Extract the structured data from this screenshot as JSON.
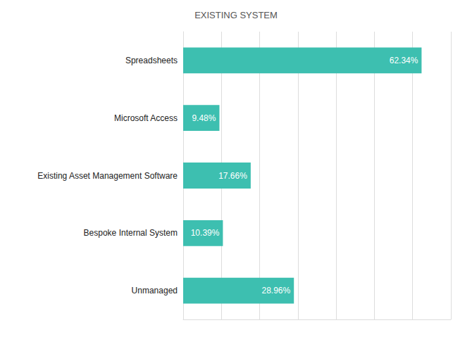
{
  "chart_data": {
    "type": "bar",
    "orientation": "horizontal",
    "title": "EXISTING SYSTEM",
    "categories": [
      "Unmanaged",
      "Bespoke Internal System",
      "Existing Asset Management Software",
      "Microsoft Access",
      "Spreadsheets"
    ],
    "values": [
      28.96,
      10.39,
      17.66,
      9.48,
      62.34
    ],
    "value_labels": [
      "28.96%",
      "10.39%",
      "17.66%",
      "9.48%",
      "62.34%"
    ],
    "data_labels": true,
    "color": "#3dbfb0",
    "xlim": [
      0,
      70
    ],
    "xticks": [
      0,
      10,
      20,
      30,
      40,
      50,
      60,
      70
    ],
    "grid": true,
    "tick_labels": "y"
  }
}
